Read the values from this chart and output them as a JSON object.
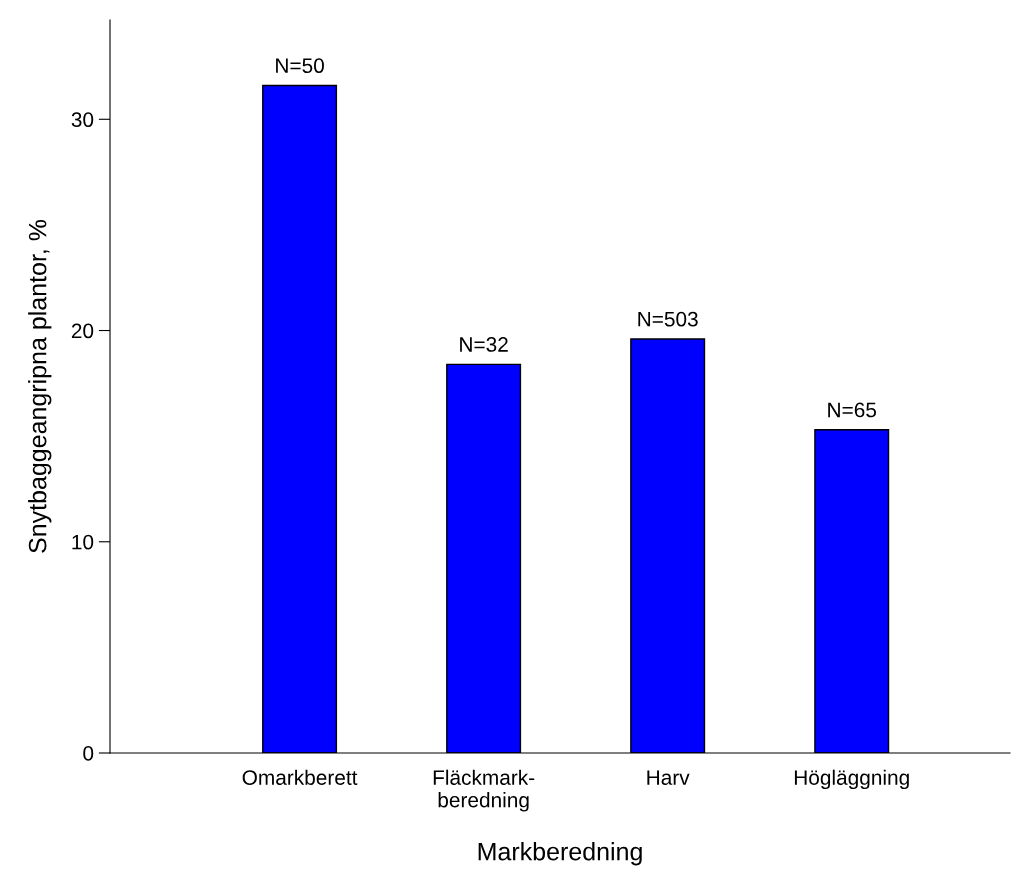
{
  "chart_data": {
    "type": "bar",
    "xlabel": "Markberedning",
    "ylabel": "Snytbaggeangripna plantor, %",
    "categories": [
      "Omarkberett",
      "Fläckmark-\nberedning",
      "Harv",
      "Högläggning"
    ],
    "values": [
      31.6,
      18.4,
      19.6,
      15.3
    ],
    "annotations": [
      {
        "text": "N=50",
        "x": "Omarkberett",
        "y": 31.6
      },
      {
        "text": "N=32",
        "x": "Fläckmark-\nberedning",
        "y": 18.4
      },
      {
        "text": "N=503",
        "x": "Harv",
        "y": 19.6
      },
      {
        "text": "N=65",
        "x": "Högläggning",
        "y": 15.3
      }
    ],
    "color": "#0000ff",
    "ylim": [
      0,
      34.7
    ],
    "yticks": [
      0,
      10,
      20,
      30
    ],
    "grid": false
  }
}
